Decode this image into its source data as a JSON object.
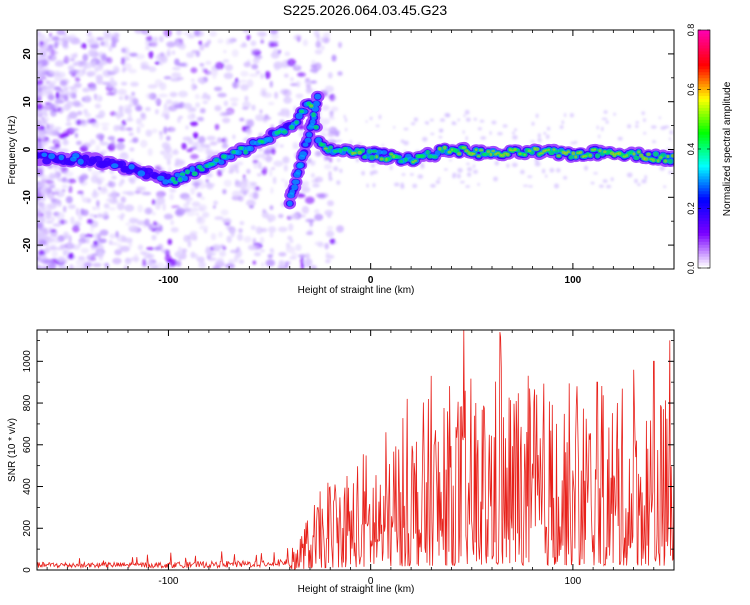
{
  "title": "S225.2026.064.03.45.G23",
  "chart_data": [
    {
      "type": "heatmap",
      "name": "spectrogram",
      "xlabel": "Height of straight line (km)",
      "ylabel": "Frequency (Hz)",
      "xlim": [
        -165,
        150
      ],
      "ylim": [
        -25,
        25
      ],
      "xticks": [
        -100,
        0,
        100
      ],
      "yticks": [
        -20,
        -10,
        0,
        10,
        20
      ],
      "colorbar": {
        "label": "Normalized spectral amplitude",
        "range": [
          0,
          0.8
        ],
        "ticks": [
          0.0,
          0.2,
          0.4,
          0.6,
          0.8
        ],
        "colors": [
          "#ffffff",
          "#7b00ff",
          "#0000ff",
          "#00ffff",
          "#00ff00",
          "#ffff00",
          "#ff0000",
          "#ff00aa"
        ]
      },
      "ridge": {
        "x": [
          -165,
          -130,
          -110,
          -100,
          -95,
          -90,
          -80,
          -70,
          -60,
          -50,
          -45,
          -40,
          -35,
          -30,
          -25,
          -20,
          0,
          20,
          40,
          60,
          80,
          100,
          120,
          140,
          150
        ],
        "freq": [
          -1.5,
          -2.5,
          -5,
          -6.5,
          -6,
          -5,
          -3.5,
          -1.5,
          0.5,
          2.5,
          3.5,
          5,
          7,
          10,
          0.5,
          0,
          -1,
          -2,
          0,
          -1,
          -0.5,
          -1,
          -0.5,
          -1.5,
          -2
        ]
      },
      "branch": {
        "x": [
          -40,
          -38,
          -36,
          -34,
          -32,
          -30,
          -28,
          -26
        ],
        "freq": [
          -11,
          -8,
          -5,
          -2,
          1,
          4,
          7,
          12
        ]
      }
    },
    {
      "type": "line",
      "name": "snr",
      "xlabel": "Height of straight line (km)",
      "ylabel": "SNR (10 * v/v)",
      "xlim": [
        -165,
        150
      ],
      "ylim": [
        0,
        1150
      ],
      "xticks": [
        -100,
        0,
        100
      ],
      "yticks": [
        0,
        200,
        400,
        600,
        800,
        1000
      ],
      "color": "#e8201a",
      "envelope": {
        "x": [
          -165,
          -100,
          -60,
          -40,
          -30,
          -20,
          0,
          20,
          40,
          60,
          80,
          100,
          120,
          150
        ],
        "mean": [
          25,
          25,
          30,
          40,
          140,
          230,
          300,
          380,
          440,
          470,
          460,
          440,
          430,
          420
        ]
      },
      "peaks": [
        {
          "x": 18,
          "y": 820
        },
        {
          "x": 30,
          "y": 930
        },
        {
          "x": 38,
          "y": 760
        },
        {
          "x": 52,
          "y": 800
        },
        {
          "x": 64,
          "y": 1140
        },
        {
          "x": 72,
          "y": 810
        },
        {
          "x": 82,
          "y": 840
        },
        {
          "x": 92,
          "y": 700
        },
        {
          "x": 102,
          "y": 880
        },
        {
          "x": 112,
          "y": 900
        },
        {
          "x": 122,
          "y": 800
        },
        {
          "x": 130,
          "y": 960
        },
        {
          "x": 140,
          "y": 1000
        },
        {
          "x": 148,
          "y": 1100
        }
      ]
    }
  ]
}
